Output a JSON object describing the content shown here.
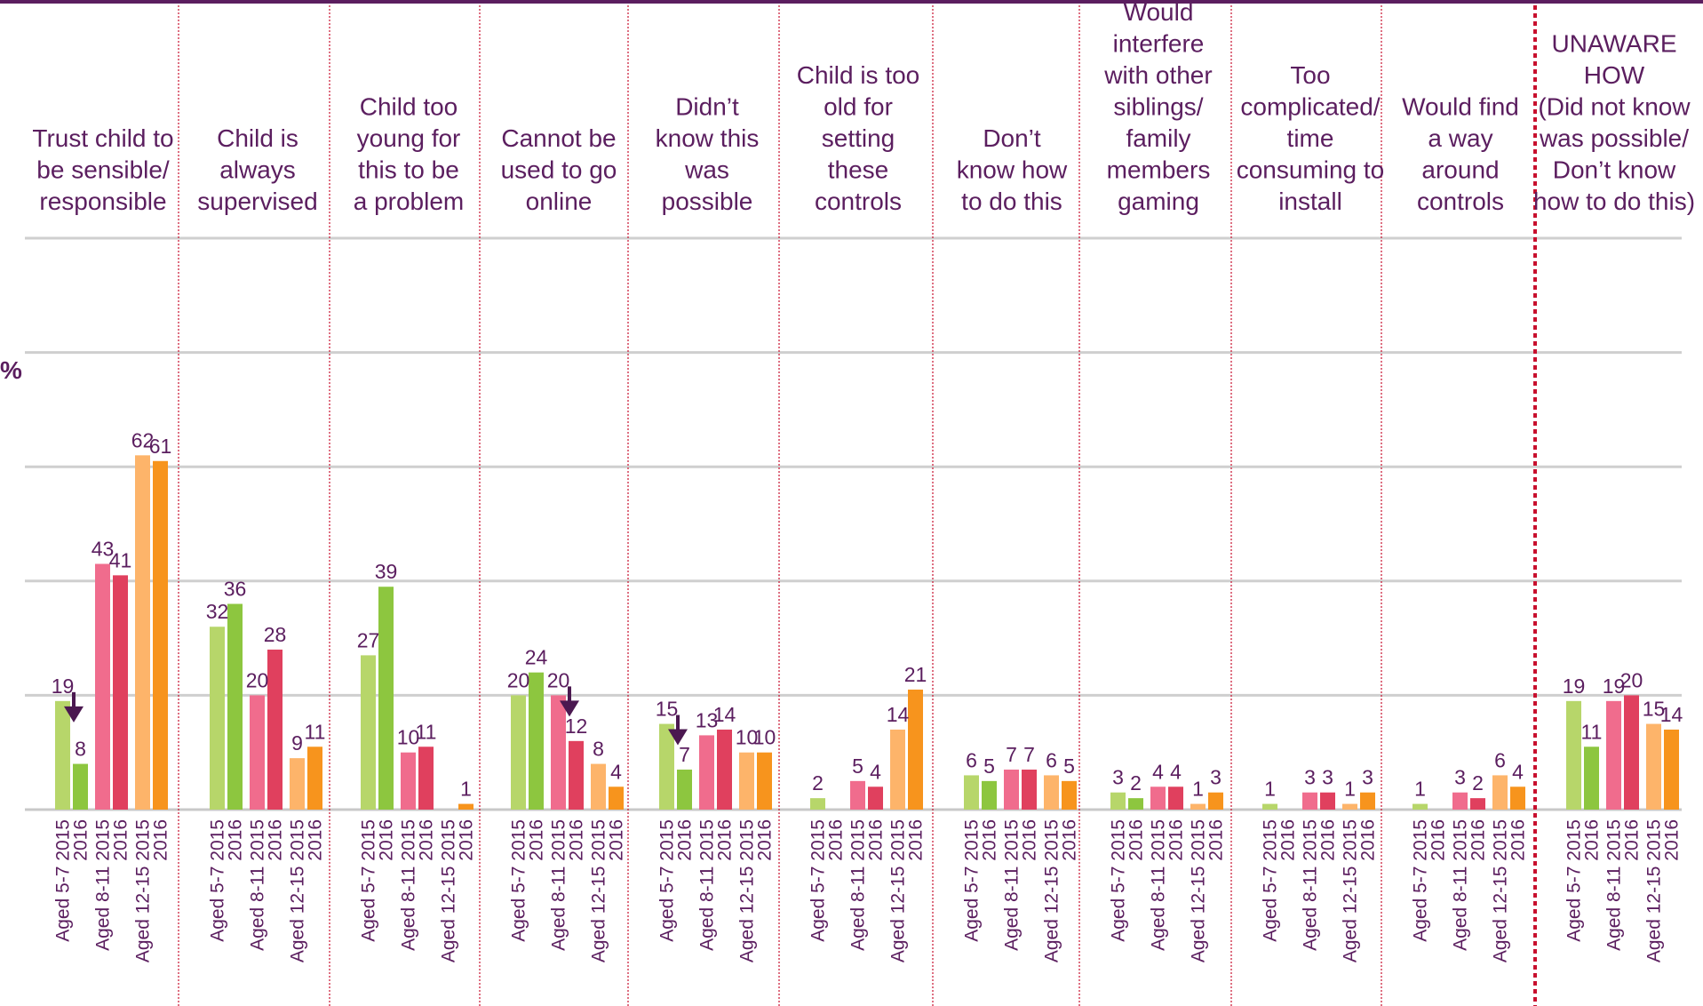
{
  "chart_data": {
    "type": "bar",
    "y_unit_label": "%",
    "ylim": [
      0,
      100
    ],
    "grid": true,
    "age_groups": [
      "Aged 5-7",
      "Aged 8-11",
      "Aged 12-15"
    ],
    "years": [
      "2015",
      "2016"
    ],
    "bar_colors": [
      "#b7d66a",
      "#8dc63f",
      "#f06c8d",
      "#e0405e",
      "#fdb46a",
      "#f7941d"
    ],
    "text_color": "#5b1e5f",
    "divider_color": "#c8102e",
    "decrease_arrow_color": "#4b1850",
    "categories": [
      {
        "label": "Trust child to be sensible/ responsible",
        "label_lines": [
          "Trust child to",
          "be sensible/",
          "responsible"
        ],
        "values": [
          19,
          8,
          43,
          41,
          62,
          61
        ],
        "decrease_after": [
          0
        ]
      },
      {
        "label": "Child is always supervised",
        "label_lines": [
          "Child is",
          "always",
          "supervised"
        ],
        "values": [
          32,
          36,
          20,
          28,
          9,
          11
        ],
        "decrease_after": []
      },
      {
        "label": "Child too young for this to be a problem",
        "label_lines": [
          "Child too",
          "young for",
          "this to be",
          "a problem"
        ],
        "values": [
          27,
          39,
          10,
          11,
          null,
          1
        ],
        "decrease_after": []
      },
      {
        "label": "Cannot be used to go online",
        "label_lines": [
          "Cannot be",
          "used to go",
          "online"
        ],
        "values": [
          20,
          24,
          20,
          12,
          8,
          4
        ],
        "decrease_after": [
          2
        ]
      },
      {
        "label": "Didn’t know this was possible",
        "label_lines": [
          "Didn’t",
          "know this",
          "was",
          "possible"
        ],
        "values": [
          15,
          7,
          13,
          14,
          10,
          10
        ],
        "decrease_after": [
          0
        ]
      },
      {
        "label": "Child is too old for setting these controls",
        "label_lines": [
          "Child is too",
          "old for",
          "setting",
          "these",
          "controls"
        ],
        "values": [
          2,
          null,
          5,
          4,
          14,
          21
        ],
        "decrease_after": []
      },
      {
        "label": "Don’t know how to do this",
        "label_lines": [
          "Don’t",
          "know how",
          "to do this"
        ],
        "values": [
          6,
          5,
          7,
          7,
          6,
          5
        ],
        "decrease_after": []
      },
      {
        "label": "Would interfere with other siblings/ family members gaming",
        "label_lines": [
          "Would",
          "interfere",
          "with other",
          "siblings/",
          "family",
          "members",
          "gaming"
        ],
        "values": [
          3,
          2,
          4,
          4,
          1,
          3
        ],
        "decrease_after": []
      },
      {
        "label": "Too complicated/ time consuming to install",
        "label_lines": [
          "Too",
          "complicated/",
          "time",
          "consuming to",
          "install"
        ],
        "values": [
          1,
          null,
          3,
          3,
          1,
          3
        ],
        "decrease_after": []
      },
      {
        "label": "Would find a way around controls",
        "label_lines": [
          "Would find",
          "a way",
          "around",
          "controls"
        ],
        "values": [
          1,
          null,
          3,
          2,
          6,
          4
        ],
        "decrease_after": []
      },
      {
        "label": "UNAWARE HOW (Did not know was possible/ Don’t know how to do this)",
        "label_lines": [
          "UNAWARE",
          "HOW",
          "(Did not know",
          "was possible/",
          "Don’t know",
          "how to do this)"
        ],
        "values": [
          19,
          11,
          19,
          20,
          15,
          14
        ],
        "decrease_after": []
      }
    ]
  }
}
